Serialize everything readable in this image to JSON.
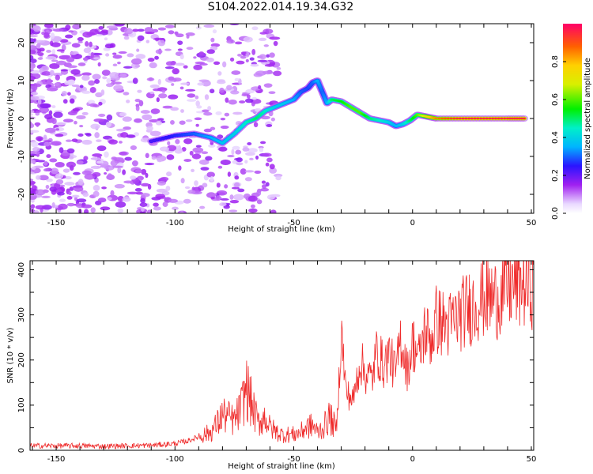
{
  "title": "S104.2022.014.19.34.G32",
  "chart_data": [
    {
      "type": "heatmap",
      "xlabel": "Height of straight line (km)",
      "ylabel": "Frequency (Hz)",
      "xlim": [
        -161,
        51
      ],
      "ylim": [
        -25,
        25
      ],
      "xticks": [
        "-150",
        "-100",
        "-50",
        "0",
        "50"
      ],
      "yticks": [
        "20",
        "10",
        "0",
        "-10",
        "-20"
      ],
      "colorbar": {
        "label": "Normalized spectral amplitude",
        "ticks": [
          "0.0",
          "0.2",
          "0.4",
          "0.6",
          "0.8"
        ],
        "range": [
          0,
          1
        ]
      },
      "ridge": {
        "x": [
          -110,
          -100,
          -92,
          -85,
          -80,
          -75,
          -70,
          -66,
          -62,
          -58,
          -54,
          -50,
          -47,
          -44,
          -42,
          -40,
          -38,
          -36,
          -34,
          -30,
          -26,
          -22,
          -18,
          -14,
          -10,
          -7,
          -4,
          -1,
          2,
          6,
          10,
          20,
          30,
          40,
          48
        ],
        "y": [
          -6,
          -4.5,
          -4,
          -5,
          -6.5,
          -4,
          -1,
          0,
          2,
          3,
          4,
          5,
          7,
          8,
          9.5,
          10,
          7,
          4,
          5,
          4.5,
          3,
          1.5,
          0,
          -0.5,
          -1,
          -2,
          -1.5,
          -0.5,
          1,
          0.5,
          0,
          0,
          0,
          0,
          0
        ],
        "amplitude": [
          0.22,
          0.26,
          0.3,
          0.35,
          0.38,
          0.4,
          0.45,
          0.5,
          0.45,
          0.4,
          0.38,
          0.35,
          0.3,
          0.28,
          0.3,
          0.35,
          0.3,
          0.35,
          0.5,
          0.55,
          0.6,
          0.6,
          0.5,
          0.45,
          0.4,
          0.35,
          0.4,
          0.5,
          0.6,
          0.75,
          0.85,
          0.95,
          0.95,
          0.95,
          0.95
        ]
      }
    },
    {
      "type": "line",
      "xlabel": "Height of straight line (km)",
      "ylabel": "SNR (10 * v/v)",
      "xlim": [
        -161,
        51
      ],
      "ylim": [
        0,
        420
      ],
      "xticks": [
        "-150",
        "-100",
        "-50",
        "0",
        "50"
      ],
      "yticks": [
        "0",
        "100",
        "200",
        "300",
        "400"
      ],
      "series": [
        {
          "color": "#ef2b2b",
          "x": [
            -161,
            -150,
            -140,
            -130,
            -120,
            -110,
            -100,
            -95,
            -90,
            -85,
            -82,
            -80,
            -75,
            -72,
            -70,
            -67,
            -65,
            -62,
            -60,
            -57,
            -55,
            -50,
            -47,
            -45,
            -42,
            -40,
            -37,
            -35,
            -32,
            -31,
            -30,
            -28,
            -25,
            -22,
            -20,
            -17,
            -15,
            -12,
            -10,
            -7,
            -5,
            -2,
            0,
            3,
            5,
            8,
            10,
            15,
            20,
            25,
            30,
            35,
            40,
            45,
            50,
            51
          ],
          "y": [
            10,
            10,
            10,
            9,
            10,
            11,
            15,
            20,
            30,
            40,
            60,
            80,
            65,
            95,
            140,
            90,
            60,
            75,
            50,
            40,
            35,
            35,
            40,
            50,
            55,
            40,
            55,
            75,
            45,
            150,
            265,
            130,
            110,
            200,
            170,
            160,
            220,
            185,
            215,
            170,
            250,
            175,
            240,
            205,
            265,
            245,
            290,
            275,
            300,
            320,
            340,
            335,
            360,
            370,
            365,
            380
          ]
        }
      ]
    }
  ]
}
